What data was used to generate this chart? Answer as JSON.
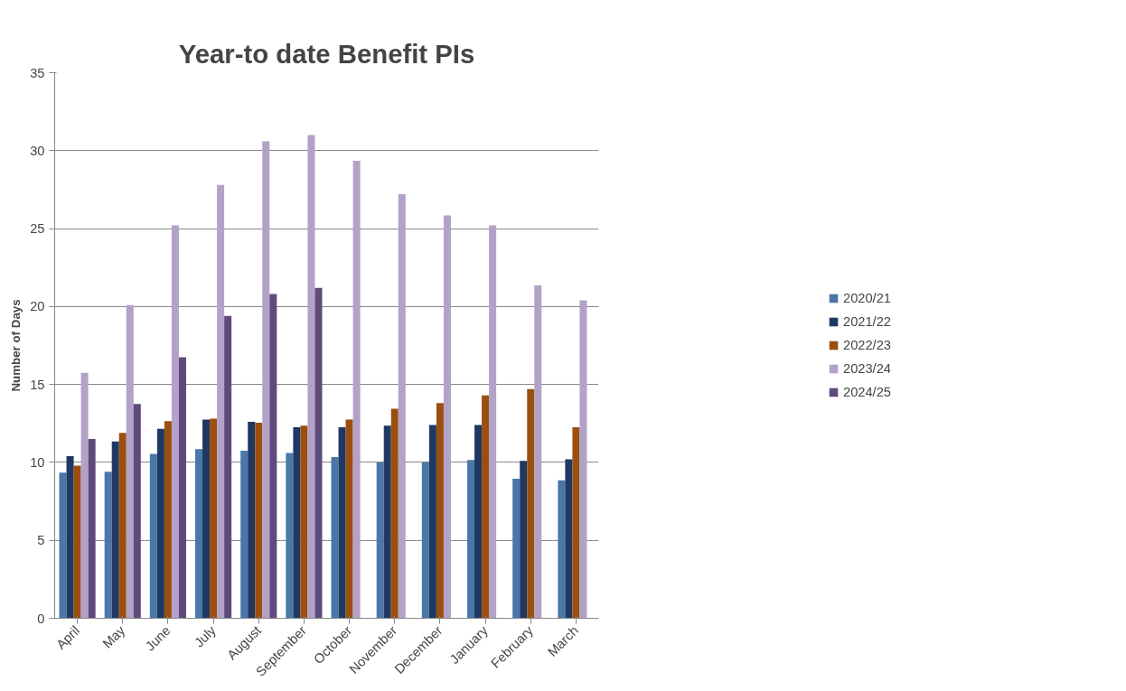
{
  "chart_data": {
    "type": "bar",
    "title": "Year-to date Benefit PIs",
    "ylabel": "Number of Days",
    "categories": [
      "April",
      "May",
      "June",
      "July",
      "August",
      "September",
      "October",
      "November",
      "December",
      "January",
      "February",
      "March"
    ],
    "series": [
      {
        "name": "2020/21",
        "color": "#4a76a8",
        "values": [
          9.35,
          9.4,
          10.55,
          10.85,
          10.75,
          10.6,
          10.35,
          10.0,
          10.0,
          10.15,
          8.95,
          8.85
        ]
      },
      {
        "name": "2021/22",
        "color": "#1f3864",
        "values": [
          10.4,
          11.35,
          12.15,
          12.75,
          12.6,
          12.25,
          12.25,
          12.35,
          12.4,
          12.4,
          10.1,
          10.2
        ]
      },
      {
        "name": "2022/23",
        "color": "#9b4f0f",
        "values": [
          9.8,
          11.9,
          12.65,
          12.8,
          12.55,
          12.35,
          12.75,
          13.45,
          13.8,
          14.3,
          14.7,
          12.25
        ]
      },
      {
        "name": "2023/24",
        "color": "#b3a2c7",
        "values": [
          15.75,
          20.1,
          25.2,
          27.8,
          30.6,
          31.0,
          29.35,
          27.2,
          25.85,
          25.2,
          21.35,
          20.4
        ]
      },
      {
        "name": "2024/25",
        "color": "#604a7b",
        "values": [
          11.5,
          13.75,
          16.75,
          19.4,
          20.8,
          21.2,
          null,
          null,
          null,
          null,
          null,
          null
        ]
      }
    ],
    "ylim": [
      0,
      35
    ],
    "yticks": [
      0,
      5,
      10,
      15,
      20,
      25,
      30,
      35
    ],
    "grid": "y",
    "legend": "right"
  }
}
